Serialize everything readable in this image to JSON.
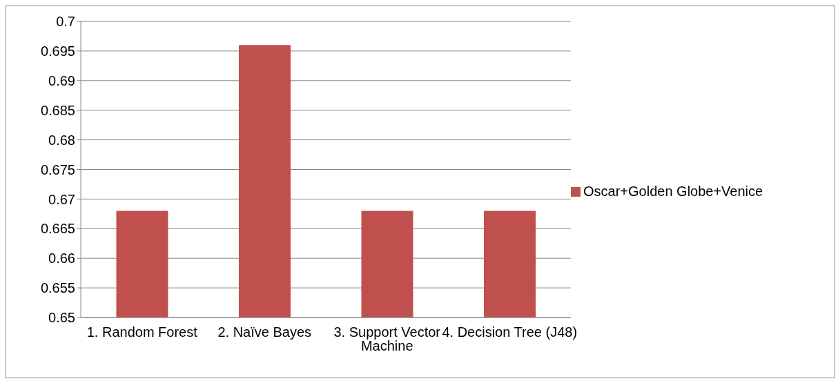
{
  "chart_data": {
    "type": "bar",
    "categories": [
      "1. Random Forest",
      "2. Naïve Bayes",
      "3. Support Vector Machine",
      "4. Decision Tree (J48)"
    ],
    "series": [
      {
        "name": "Oscar+Golden Globe+Venice",
        "color": "#c0504d",
        "values": [
          0.668,
          0.696,
          0.668,
          0.668
        ]
      }
    ],
    "ylim": [
      0.65,
      0.7
    ],
    "yticks": [
      0.65,
      0.655,
      0.66,
      0.665,
      0.67,
      0.675,
      0.68,
      0.685,
      0.69,
      0.695,
      0.7
    ],
    "grid": "y",
    "legend": "right"
  }
}
